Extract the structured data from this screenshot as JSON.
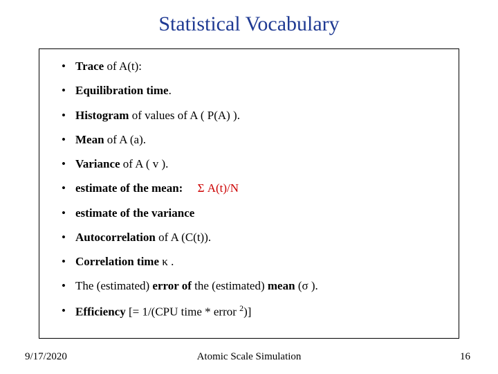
{
  "title": {
    "text": "Statistical Vocabulary",
    "color": "#1f3a93"
  },
  "items": [
    {
      "html": "<strong>Trace</strong> of A(t):"
    },
    {
      "html": "<strong>Equilibration time</strong>."
    },
    {
      "html": "<strong>Histogram</strong> of values of A ( P(A) )."
    },
    {
      "html": "<strong>Mean</strong> of A (a)."
    },
    {
      "html": "<strong>Variance</strong> of A ( v )."
    },
    {
      "html": "<strong>estimate of the mean:</strong>&nbsp;&nbsp;&nbsp;&nbsp;&nbsp;<span class=\"highlight\">Σ A(t)/N</span>"
    },
    {
      "html": "<strong>estimate of the variance</strong>"
    },
    {
      "html": "<strong>Autocorrelation</strong> of A (C(t))."
    },
    {
      "html": "<strong>Correlation time</strong> κ ."
    },
    {
      "html": "The (estimated) <strong>error of</strong> the (estimated) <strong>mean</strong> (σ )."
    },
    {
      "html": "<strong>Efficiency</strong> [= 1/(CPU time * error <span class=\"sup\">2</span>)]"
    }
  ],
  "footer": {
    "date": "9/17/2020",
    "center": "Atomic Scale Simulation",
    "page": "16"
  },
  "colors": {
    "title": "#1f3a93",
    "highlight": "#cc0000",
    "text": "#000000",
    "border": "#000000",
    "background": "#ffffff"
  }
}
